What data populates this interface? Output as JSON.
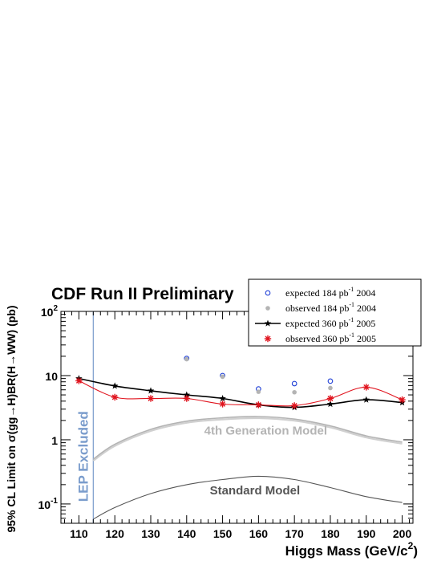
{
  "chart_data": {
    "type": "line",
    "title": "CDF Run II Preliminary",
    "xlabel": "Higgs Mass (GeV/c",
    "xlabel_sup": "2",
    "xlabel_end": ")",
    "ylabel": "95% CL Limit on σ(gg→H)BR(H→WW) (pb)",
    "xlim": [
      105,
      203
    ],
    "ylim": [
      0.05,
      100
    ],
    "yscale": "log",
    "x_ticks": [
      "110",
      "120",
      "130",
      "140",
      "150",
      "160",
      "170",
      "180",
      "190",
      "200"
    ],
    "y_ticks": [
      {
        "value": 0.1,
        "base": "10",
        "exp": "-1"
      },
      {
        "value": 1,
        "base": "1",
        "exp": ""
      },
      {
        "value": 10,
        "base": "10",
        "exp": ""
      },
      {
        "value": 100,
        "base": "10",
        "exp": "2"
      }
    ],
    "legend": {
      "position": "top-right",
      "entries": [
        {
          "text": "expected 184 pb",
          "sup": "-1",
          "year": " 2004",
          "marker": "open-circle",
          "color": "#1f3fd6"
        },
        {
          "text": "observed 184 pb",
          "sup": "-1",
          "year": " 2004",
          "marker": "filled-circle",
          "color": "#b4b4b4"
        },
        {
          "text": "expected 360 pb",
          "sup": "-1",
          "year": " 2005",
          "marker": "star-line",
          "color": "#000000"
        },
        {
          "text": "observed 360 pb",
          "sup": "-1",
          "year": " 2005",
          "marker": "asterisk",
          "color": "#e0141e"
        }
      ]
    },
    "series": [
      {
        "name": "expected 184 pb-1 2004",
        "style": "open-circle",
        "color": "#1f3fd6",
        "x": [
          140,
          150,
          160,
          170,
          180
        ],
        "y": [
          18.5,
          10.0,
          6.2,
          7.5,
          8.2
        ]
      },
      {
        "name": "observed 184 pb-1 2004",
        "style": "filled-circle",
        "color": "#b4b4b4",
        "x": [
          140,
          150,
          160,
          170,
          180
        ],
        "y": [
          18.0,
          9.6,
          5.6,
          5.5,
          6.4
        ]
      },
      {
        "name": "expected 360 pb-1 2005",
        "style": "star-line",
        "color": "#000000",
        "x": [
          110,
          120,
          130,
          140,
          150,
          160,
          170,
          180,
          190,
          200
        ],
        "y": [
          9.0,
          6.9,
          5.8,
          5.0,
          4.4,
          3.5,
          3.2,
          3.6,
          4.2,
          3.8
        ]
      },
      {
        "name": "observed 360 pb-1 2005",
        "style": "asterisk-line",
        "color": "#e0141e",
        "x": [
          110,
          120,
          130,
          140,
          150,
          160,
          170,
          180,
          190,
          200
        ],
        "y": [
          8.3,
          4.6,
          4.4,
          4.4,
          3.6,
          3.5,
          3.4,
          4.4,
          6.6,
          4.2
        ]
      }
    ],
    "curves": [
      {
        "label": "4th Generation Model",
        "color": "#b4b4b4",
        "x": [
          114,
          120,
          130,
          140,
          150,
          160,
          170,
          180,
          190,
          200
        ],
        "y": [
          0.5,
          0.85,
          1.45,
          1.95,
          2.2,
          2.3,
          2.1,
          1.65,
          1.15,
          0.92
        ]
      },
      {
        "label": "Standard Model",
        "color": "#555555",
        "x": [
          114,
          120,
          130,
          140,
          150,
          160,
          170,
          180,
          190,
          200
        ],
        "y": [
          0.058,
          0.088,
          0.145,
          0.2,
          0.24,
          0.27,
          0.24,
          0.18,
          0.13,
          0.105
        ]
      }
    ],
    "lep_excluded": {
      "label": "LEP Excluded",
      "x": 114,
      "color": "#7a9ccc"
    }
  }
}
